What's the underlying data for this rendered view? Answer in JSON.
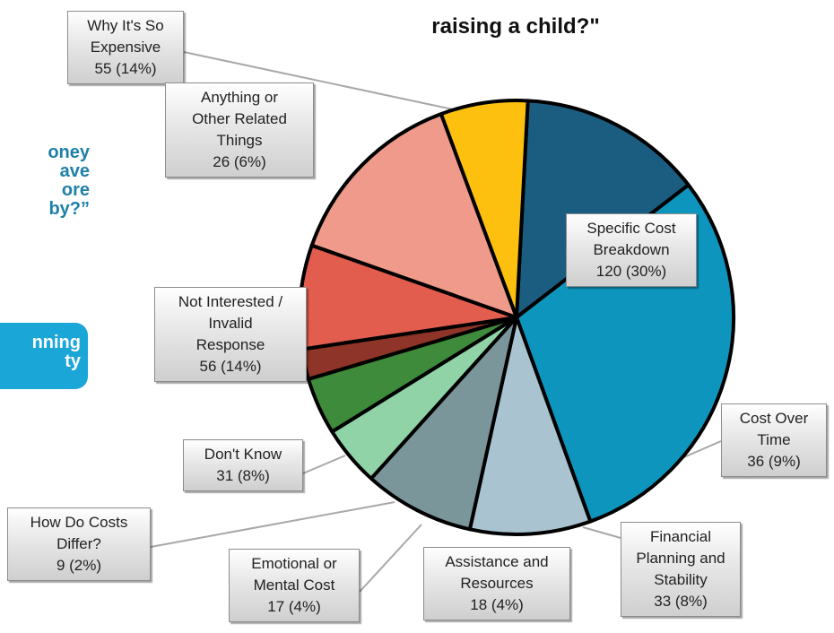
{
  "chart_data": {
    "type": "pie",
    "title": "raising a child?\"",
    "side_text": "oney\nave\nore\nby?”",
    "side_badge_text": "nning\nty",
    "colors": {
      "Why It's So Expensive": "#1b5d80",
      "Specific Cost Breakdown": "#0e95bd",
      "Cost Over Time": "#a9c3d1",
      "Financial Planning and Stability": "#7b969b",
      "Assistance and Resources": "#8fd3a6",
      "Emotional or Mental Cost": "#3e8b3b",
      "How Do Costs Differ?": "#8e3428",
      "Don't Know": "#e35d4f",
      "Not Interested / Invalid Response": "#ef9a8a",
      "Anything or Other Related Things": "#fdc00f"
    },
    "slices": [
      {
        "label": "Why It's So\nExpensive",
        "count": 55,
        "value": 14,
        "display": "55 (14%)"
      },
      {
        "label": "Specific Cost\nBreakdown",
        "count": 120,
        "value": 30,
        "display": "120 (30%)"
      },
      {
        "label": "Cost Over\nTime",
        "count": 36,
        "value": 9,
        "display": "36 (9%)"
      },
      {
        "label": "Financial\nPlanning and\nStability",
        "count": 33,
        "value": 8,
        "display": "33 (8%)"
      },
      {
        "label": "Assistance and\nResources",
        "count": 18,
        "value": 4,
        "display": "18 (4%)"
      },
      {
        "label": "Emotional or\nMental Cost",
        "count": 17,
        "value": 4,
        "display": "17 (4%)"
      },
      {
        "label": "How Do Costs\nDiffer?",
        "count": 9,
        "value": 2,
        "display": "9 (2%)"
      },
      {
        "label": "Don't Know",
        "count": 31,
        "value": 8,
        "display": "31 (8%)"
      },
      {
        "label": "Not Interested /\nInvalid\nResponse",
        "count": 56,
        "value": 14,
        "display": "56 (14%)"
      },
      {
        "label": "Anything or\nOther Related\nThings",
        "count": 26,
        "value": 6,
        "display": "26 (6%)"
      }
    ]
  }
}
